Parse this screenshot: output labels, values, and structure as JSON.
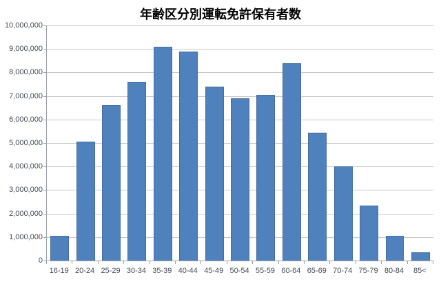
{
  "title": "年齢区分別運転免許保有者数",
  "chart_data": {
    "type": "bar",
    "title": "年齢区分別運転免許保有者数",
    "categories": [
      "16-19",
      "20-24",
      "25-29",
      "30-34",
      "35-39",
      "40-44",
      "45-49",
      "50-54",
      "55-59",
      "60-64",
      "65-69",
      "70-74",
      "75-79",
      "80-84",
      "85<"
    ],
    "values": [
      1050000,
      5050000,
      6600000,
      7600000,
      9100000,
      8900000,
      7400000,
      6900000,
      7050000,
      8400000,
      5450000,
      4000000,
      2350000,
      1050000,
      350000
    ],
    "xlabel": "",
    "ylabel": "",
    "ylim": [
      0,
      10000000
    ],
    "ytick_step": 1000000,
    "y_tick_labels": [
      "0",
      "1,000,000",
      "2,000,000",
      "3,000,000",
      "4,000,000",
      "5,000,000",
      "6,000,000",
      "7,000,000",
      "8,000,000",
      "9,000,000",
      "10,000,000"
    ],
    "grid": true,
    "legend_position": "none",
    "colors": {
      "bar_fill": "#4f81bd",
      "bar_border": "#436d9f",
      "gridline": "#c6c6c6",
      "axis_line": "#9aa0aa",
      "tick_label": "#454a57",
      "title": "#000000",
      "background": "#ffffff"
    }
  }
}
